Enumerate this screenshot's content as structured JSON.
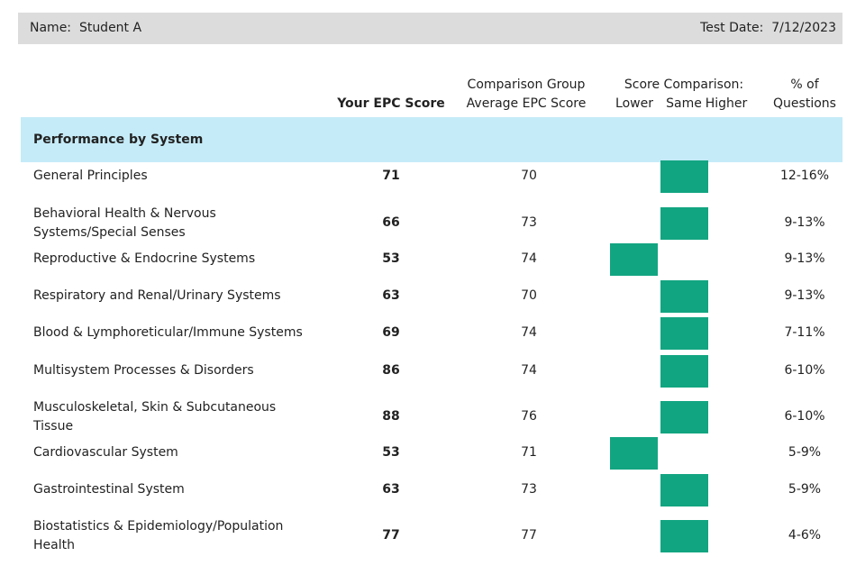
{
  "header": {
    "name_label": "Name:",
    "name": "Student A",
    "test_date_label": "Test Date:",
    "test_date": "7/12/2023"
  },
  "columns": {
    "score": "Your EPC Score",
    "group": [
      "Comparison Group",
      "Average EPC Score"
    ],
    "comparison": "Score Comparison:",
    "scale": [
      "Lower",
      "Same",
      "Higher"
    ],
    "questions": [
      "% of",
      "Questions"
    ]
  },
  "section": "Performance by System",
  "rows": [
    {
      "system": "General Principles",
      "score": 71,
      "group_average": 70,
      "comparison": "Same",
      "questions": "12-16%"
    },
    {
      "system": "Behavioral Health & Nervous Systems/Special Senses",
      "score": 66,
      "group_average": 73,
      "comparison": "Same",
      "questions": "9-13%"
    },
    {
      "system": "Reproductive & Endocrine Systems",
      "score": 53,
      "group_average": 74,
      "comparison": "Lower",
      "questions": "9-13%"
    },
    {
      "system": "Respiratory and Renal/Urinary Systems",
      "score": 63,
      "group_average": 70,
      "comparison": "Same",
      "questions": "9-13%"
    },
    {
      "system": "Blood & Lymphoreticular/Immune Systems",
      "score": 69,
      "group_average": 74,
      "comparison": "Same",
      "questions": "7-11%"
    },
    {
      "system": "Multisystem Processes & Disorders",
      "score": 86,
      "group_average": 74,
      "comparison": "Same",
      "questions": "6-10%"
    },
    {
      "system": "Musculoskeletal, Skin & Subcutaneous Tissue",
      "score": 88,
      "group_average": 76,
      "comparison": "Same",
      "questions": "6-10%"
    },
    {
      "system": "Cardiovascular System",
      "score": 53,
      "group_average": 71,
      "comparison": "Lower",
      "questions": "5-9%"
    },
    {
      "system": "Gastrointestinal System",
      "score": 63,
      "group_average": 73,
      "comparison": "Same",
      "questions": "5-9%"
    },
    {
      "system": "Biostatistics & Epidemiology/Population Health",
      "score": 77,
      "group_average": 77,
      "comparison": "Same",
      "questions": "4-6%"
    }
  ]
}
